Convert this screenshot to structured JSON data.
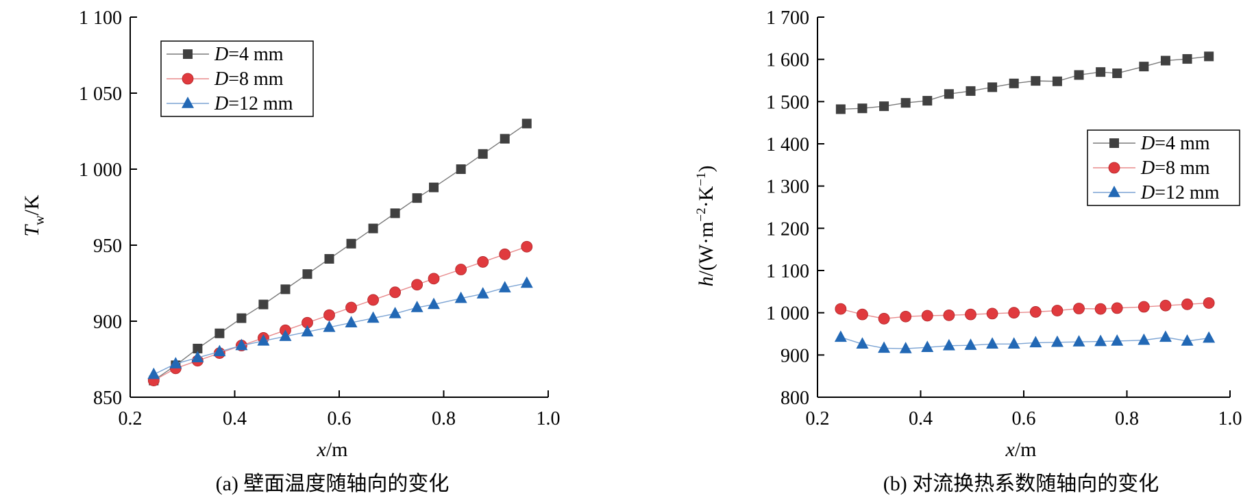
{
  "chart_data": [
    {
      "type": "line",
      "caption": "(a) 壁面温度随轴向的变化",
      "xlabel": {
        "italic": "x",
        "rest": "/m"
      },
      "ylabel": {
        "italic": "T",
        "sub": "w",
        "rest": "/K"
      },
      "xlim": [
        0.2,
        1.0
      ],
      "ylim": [
        850,
        1100
      ],
      "xticks": [
        0.2,
        0.4,
        0.6,
        0.8,
        1.0
      ],
      "xtick_labels": [
        "0.2",
        "0.4",
        "0.6",
        "0.8",
        "1.0"
      ],
      "yticks": [
        850,
        900,
        950,
        1000,
        1050,
        1100
      ],
      "ytick_labels": [
        "850",
        "900",
        "950",
        "1 000",
        "1 050",
        "1 100"
      ],
      "legend_position": "top-left",
      "x": [
        0.245,
        0.287,
        0.329,
        0.371,
        0.413,
        0.455,
        0.497,
        0.539,
        0.581,
        0.623,
        0.665,
        0.707,
        0.749,
        0.781,
        0.833,
        0.875,
        0.917,
        0.959
      ],
      "series": [
        {
          "name_italic": "D",
          "name_rest": "=4 mm",
          "marker": "square",
          "color": "#404040",
          "line_color": "#7a7a7a",
          "values": [
            861,
            871,
            882,
            892,
            902,
            911,
            921,
            931,
            941,
            951,
            961,
            971,
            981,
            988,
            1000,
            1010,
            1020,
            1030
          ]
        },
        {
          "name_italic": "D",
          "name_rest": "=8 mm",
          "marker": "circle",
          "color": "#e03a3e",
          "line_color": "#e88a8c",
          "values": [
            861,
            869,
            874,
            879,
            884,
            889,
            894,
            899,
            904,
            909,
            914,
            919,
            924,
            928,
            934,
            939,
            944,
            949
          ]
        },
        {
          "name_italic": "D",
          "name_rest": "=12 mm",
          "marker": "triangle",
          "color": "#2268b5",
          "line_color": "#7ba3d3",
          "values": [
            865,
            872,
            876,
            880,
            884,
            887,
            890,
            893,
            896,
            899,
            902,
            905,
            909,
            911,
            915,
            918,
            922,
            925
          ]
        }
      ]
    },
    {
      "type": "line",
      "caption": "(b) 对流换热系数随轴向的变化",
      "xlabel": {
        "italic": "x",
        "rest": "/m"
      },
      "ylabel": {
        "italic": "h",
        "rest": "/(W·m",
        "sup1": "−2",
        "mid": "·K",
        "sup2": "−1",
        "end": ")"
      },
      "xlim": [
        0.2,
        1.0
      ],
      "ylim": [
        800,
        1700
      ],
      "xticks": [
        0.2,
        0.4,
        0.6,
        0.8,
        1.0
      ],
      "xtick_labels": [
        "0.2",
        "0.4",
        "0.6",
        "0.8",
        "1.0"
      ],
      "yticks": [
        800,
        900,
        1000,
        1100,
        1200,
        1300,
        1400,
        1500,
        1600,
        1700
      ],
      "ytick_labels": [
        "800",
        "900",
        "1 000",
        "1 100",
        "1 200",
        "1 300",
        "1 400",
        "1 500",
        "1 600",
        "1 700"
      ],
      "legend_position": "right",
      "x": [
        0.245,
        0.287,
        0.329,
        0.371,
        0.413,
        0.455,
        0.497,
        0.539,
        0.581,
        0.623,
        0.665,
        0.707,
        0.749,
        0.781,
        0.833,
        0.875,
        0.917,
        0.959
      ],
      "series": [
        {
          "name_italic": "D",
          "name_rest": "=4 mm",
          "marker": "square",
          "color": "#404040",
          "line_color": "#7a7a7a",
          "values": [
            1482,
            1484,
            1489,
            1497,
            1502,
            1518,
            1525,
            1534,
            1543,
            1549,
            1548,
            1563,
            1570,
            1567,
            1583,
            1597,
            1601,
            1607
          ]
        },
        {
          "name_italic": "D",
          "name_rest": "=8 mm",
          "marker": "circle",
          "color": "#e03a3e",
          "line_color": "#e88a8c",
          "values": [
            1009,
            996,
            986,
            991,
            993,
            994,
            996,
            998,
            1000,
            1002,
            1005,
            1010,
            1009,
            1011,
            1014,
            1017,
            1020,
            1023
          ]
        },
        {
          "name_italic": "D",
          "name_rest": "=12 mm",
          "marker": "triangle",
          "color": "#2268b5",
          "line_color": "#7ba3d3",
          "values": [
            942,
            926,
            916,
            915,
            918,
            922,
            923,
            926,
            926,
            929,
            930,
            931,
            932,
            933,
            935,
            942,
            933,
            940
          ]
        }
      ]
    }
  ]
}
